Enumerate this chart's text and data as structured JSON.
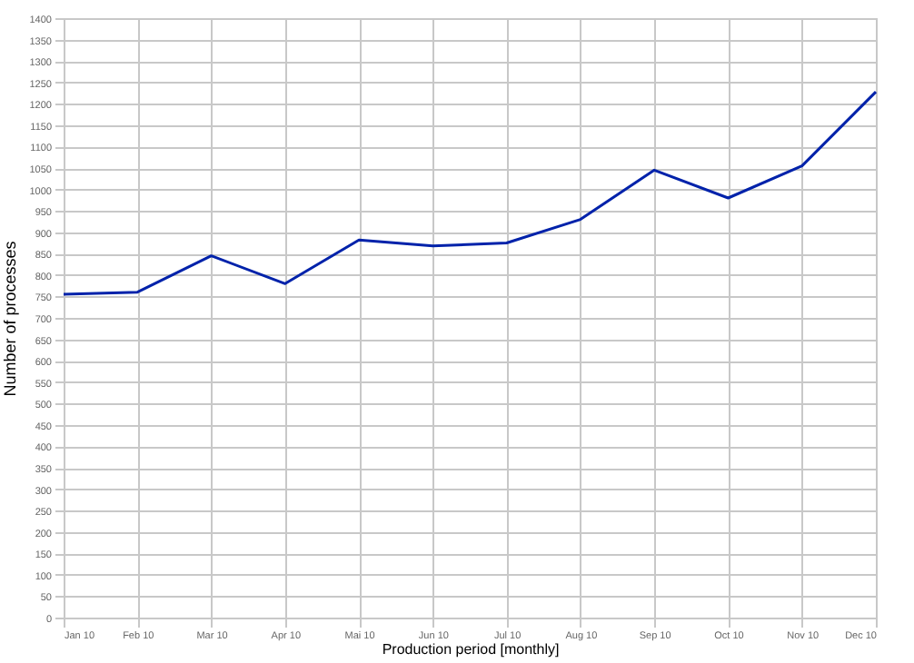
{
  "chart_data": {
    "type": "line",
    "xlabel": "Production period [monthly]",
    "ylabel": "Number of processes",
    "categories": [
      "Jan 10",
      "Feb 10",
      "Mar 10",
      "Apr 10",
      "Mai 10",
      "Jun 10",
      "Jul 10",
      "Aug 10",
      "Sep 10",
      "Oct 10",
      "Nov 10",
      "Dec 10"
    ],
    "series": [
      {
        "color": "#0022aa",
        "values": [
          755,
          760,
          845,
          780,
          882,
          868,
          875,
          930,
          1045,
          980,
          1055,
          1228
        ]
      }
    ],
    "ylim": [
      0,
      1400
    ],
    "yticks": [
      0,
      50,
      100,
      150,
      200,
      250,
      300,
      350,
      400,
      450,
      500,
      550,
      600,
      650,
      700,
      750,
      800,
      850,
      900,
      950,
      1000,
      1050,
      1100,
      1150,
      1200,
      1250,
      1300,
      1350,
      1400
    ],
    "grid": true,
    "marker": "none",
    "line_style": "solid"
  }
}
